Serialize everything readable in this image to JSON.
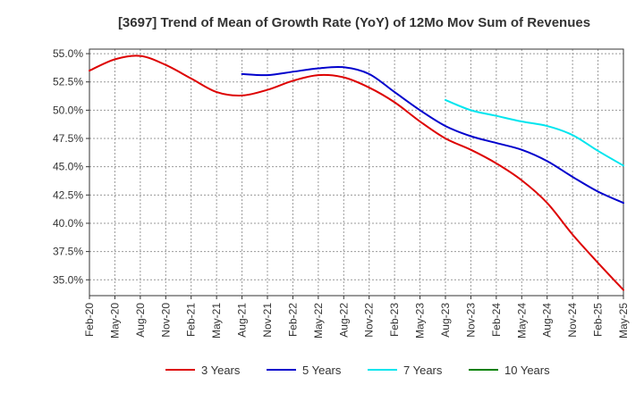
{
  "chart_data": {
    "type": "line",
    "title": "[3697]  Trend of Mean of Growth Rate (YoY) of 12Mo Mov Sum of Revenues",
    "xlabel": "",
    "ylabel": "",
    "categories": [
      "Feb-20",
      "May-20",
      "Aug-20",
      "Nov-20",
      "Feb-21",
      "May-21",
      "Aug-21",
      "Nov-21",
      "Feb-22",
      "May-22",
      "Aug-22",
      "Nov-22",
      "Feb-23",
      "May-23",
      "Aug-23",
      "Nov-23",
      "Feb-24",
      "May-24",
      "Aug-24",
      "Nov-24",
      "Feb-25",
      "May-25"
    ],
    "y_ticks": [
      "55.0%",
      "52.5%",
      "50.0%",
      "47.5%",
      "45.0%",
      "42.5%",
      "40.0%",
      "37.5%",
      "35.0%"
    ],
    "y_tick_values": [
      55.0,
      52.5,
      50.0,
      47.5,
      45.0,
      42.5,
      40.0,
      37.5,
      35.0
    ],
    "ylim": [
      33.6,
      55.4
    ],
    "grid": true,
    "legend_position": "bottom",
    "series": [
      {
        "name": "3 Years",
        "color": "#dd0000",
        "values": [
          53.5,
          54.5,
          54.8,
          54.0,
          52.8,
          51.6,
          51.3,
          51.8,
          52.6,
          53.1,
          52.9,
          52.0,
          50.7,
          49.0,
          47.5,
          46.5,
          45.3,
          43.8,
          41.8,
          39.0,
          36.5,
          34.1
        ]
      },
      {
        "name": "5 Years",
        "color": "#0000cc",
        "values": [
          null,
          null,
          null,
          null,
          null,
          null,
          53.2,
          53.1,
          53.4,
          53.7,
          53.8,
          53.2,
          51.6,
          50.0,
          48.6,
          47.7,
          47.1,
          46.5,
          45.5,
          44.1,
          42.8,
          41.8
        ]
      },
      {
        "name": "7 Years",
        "color": "#00e5ee",
        "values": [
          null,
          null,
          null,
          null,
          null,
          null,
          null,
          null,
          null,
          null,
          null,
          null,
          null,
          null,
          50.9,
          50.0,
          49.5,
          49.0,
          48.6,
          47.8,
          46.4,
          45.1
        ]
      },
      {
        "name": "10 Years",
        "color": "#008000",
        "values": [
          null,
          null,
          null,
          null,
          null,
          null,
          null,
          null,
          null,
          null,
          null,
          null,
          null,
          null,
          null,
          null,
          null,
          null,
          null,
          null,
          null,
          null
        ]
      }
    ]
  }
}
